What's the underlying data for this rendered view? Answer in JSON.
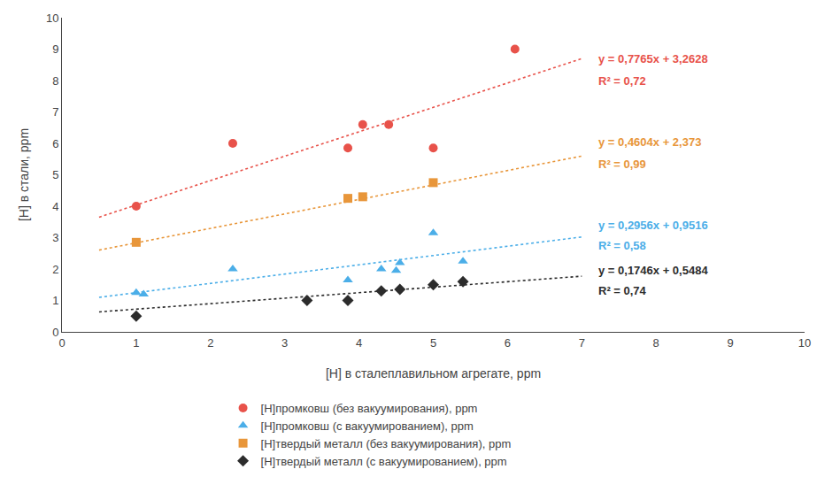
{
  "chart_data": {
    "type": "scatter",
    "xlabel": "[H] в сталеплавильном агрегате, ppm",
    "ylabel": "[H] в стали, ppm",
    "xlim": [
      0,
      10
    ],
    "ylim": [
      0,
      10
    ],
    "xticks": [
      0,
      1,
      2,
      3,
      4,
      5,
      6,
      7,
      8,
      9,
      10
    ],
    "yticks": [
      0,
      1,
      2,
      3,
      4,
      5,
      6,
      7,
      8,
      9,
      10
    ],
    "grid": false,
    "legend": "bottom",
    "series": [
      {
        "name": "[H]промковш (без вакуумирования), ppm",
        "color": "#e8524a",
        "marker": "circle",
        "x": [
          1.0,
          2.3,
          3.85,
          4.05,
          4.4,
          5.0,
          6.1
        ],
        "values": [
          4.0,
          6.0,
          5.85,
          6.6,
          6.6,
          5.85,
          9.0
        ],
        "trendline": {
          "x": [
            0.5,
            7.0
          ],
          "values": [
            3.65105,
            8.6983
          ],
          "line_style": "dotted"
        }
      },
      {
        "name": "[H]промковш (с вакуумированием), ppm",
        "color": "#4baee8",
        "marker": "triangle-up",
        "x": [
          1.0,
          1.1,
          2.3,
          3.85,
          4.3,
          4.5,
          4.55,
          5.0,
          5.4
        ],
        "values": [
          1.25,
          1.2,
          2.0,
          1.65,
          2.0,
          1.95,
          2.2,
          3.15,
          2.25
        ],
        "trendline": {
          "x": [
            0.5,
            7.0
          ],
          "values": [
            1.0994,
            3.0208
          ],
          "line_style": "dotted"
        }
      },
      {
        "name": "[H]твердый металл (без вакуумирования), ppm",
        "color": "#e8963a",
        "marker": "square",
        "x": [
          1.0,
          3.85,
          4.05,
          5.0
        ],
        "values": [
          2.85,
          4.25,
          4.3,
          4.75
        ],
        "trendline": {
          "x": [
            0.5,
            7.0
          ],
          "values": [
            2.6032,
            5.5958
          ],
          "line_style": "dotted"
        }
      },
      {
        "name": "[H]твердый металл (с вакуумированием), ppm",
        "color": "#2c2c2c",
        "marker": "diamond",
        "x": [
          1.0,
          3.3,
          3.85,
          4.3,
          4.55,
          5.0,
          5.4
        ],
        "values": [
          0.5,
          1.0,
          1.0,
          1.3,
          1.35,
          1.5,
          1.6
        ],
        "trendline": {
          "x": [
            0.5,
            7.0
          ],
          "values": [
            0.6357,
            1.7706
          ],
          "line_style": "dotted"
        }
      }
    ],
    "annotations": [
      {
        "text": "y = 0,7765x + 3,2628",
        "x": 7.2,
        "y": 8.7,
        "color": "#e8524a"
      },
      {
        "text": "R² = 0,72",
        "x": 7.2,
        "y": 8.0,
        "color": "#e8524a"
      },
      {
        "text": "y = 0,2956x + 0,9516",
        "x": 7.2,
        "y": 3.4,
        "color": "#4baee8"
      },
      {
        "text": "R² = 0,58",
        "x": 7.2,
        "y": 2.75,
        "color": "#4baee8"
      },
      {
        "text": "y = 0,4604x + 2,373",
        "x": 7.2,
        "y": 6.05,
        "color": "#e8963a"
      },
      {
        "text": "R² = 0,99",
        "x": 7.2,
        "y": 5.35,
        "color": "#e8963a"
      },
      {
        "text": "y = 0,1746x + 0,5484",
        "x": 7.2,
        "y": 1.95,
        "color": "#2c2c2c"
      },
      {
        "text": "R² = 0,74",
        "x": 7.2,
        "y": 1.3,
        "color": "#2c2c2c"
      }
    ]
  }
}
